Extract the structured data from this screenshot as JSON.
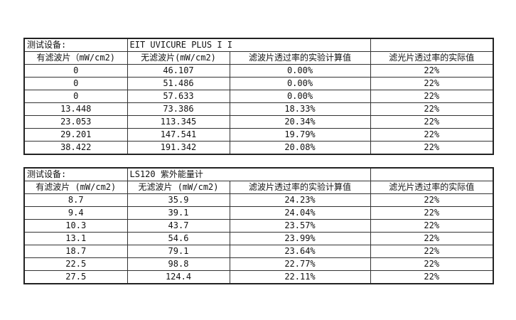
{
  "tables": [
    {
      "device_label": "测试设备:",
      "device_name": "EIT UVICURE PLUS  I I",
      "headers": [
        "有滤波片（mW/cm2)",
        "无滤波片(mW/cm2)",
        "滤波片透过率的实验计算值",
        "滤光片透过率的实际值"
      ],
      "rows": [
        [
          "0",
          "46.107",
          "0.00%",
          "22%"
        ],
        [
          "0",
          "51.486",
          "0.00%",
          "22%"
        ],
        [
          "0",
          "57.633",
          "0.00%",
          "22%"
        ],
        [
          "13.448",
          "73.386",
          "18.33%",
          "22%"
        ],
        [
          "23.053",
          "113.345",
          "20.34%",
          "22%"
        ],
        [
          "29.201",
          "147.541",
          "19.79%",
          "22%"
        ],
        [
          "38.422",
          "191.342",
          "20.08%",
          "22%"
        ]
      ]
    },
    {
      "device_label": "测试设备:",
      "device_name": "LS120 紫外能量计",
      "headers": [
        "有滤波片  (mW/cm2)",
        "无滤波片 (mW/cm2)",
        "滤波片透过率的实验计算值",
        "滤光片透过率的实际值"
      ],
      "rows": [
        [
          "8.7",
          "35.9",
          "24.23%",
          "22%"
        ],
        [
          "9.4",
          "39.1",
          "24.04%",
          "22%"
        ],
        [
          "10.3",
          "43.7",
          "23.57%",
          "22%"
        ],
        [
          "13.1",
          "54.6",
          "23.99%",
          "22%"
        ],
        [
          "18.7",
          "79.1",
          "23.64%",
          "22%"
        ],
        [
          "22.5",
          "98.8",
          "22.77%",
          "22%"
        ],
        [
          "27.5",
          "124.4",
          "22.11%",
          "22%"
        ]
      ]
    }
  ]
}
